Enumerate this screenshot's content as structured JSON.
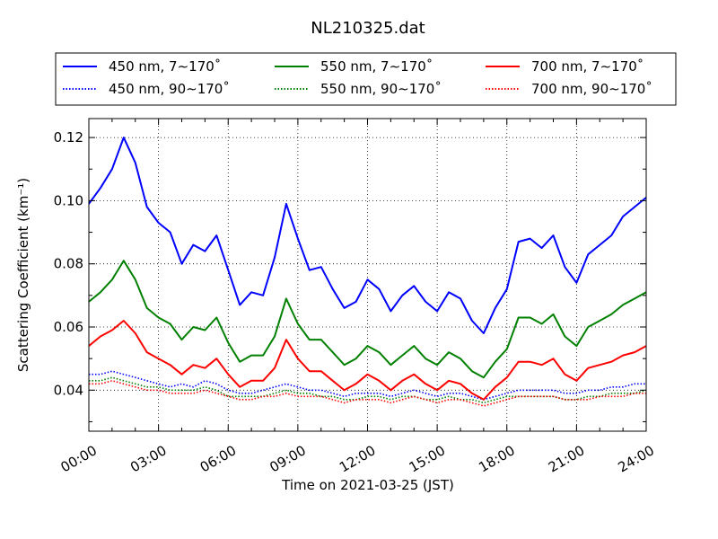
{
  "chart_data": {
    "type": "line",
    "title": "NL210325.dat",
    "xlabel": "Time on 2021-03-25 (JST)",
    "ylabel": "Scattering Coefficient (km⁻¹)",
    "xlim": [
      "00:00",
      "24:00"
    ],
    "ylim": [
      0.027,
      0.126
    ],
    "x_ticks": [
      "00:00",
      "03:00",
      "06:00",
      "09:00",
      "12:00",
      "15:00",
      "18:00",
      "21:00",
      "24:00"
    ],
    "y_ticks": [
      "0.04",
      "0.06",
      "0.08",
      "0.10",
      "0.12"
    ],
    "y_tick_values": [
      0.04,
      0.06,
      0.08,
      0.1,
      0.12
    ],
    "grid": true,
    "legend_position": "top (outside plot)",
    "x": [
      "00:00",
      "00:30",
      "01:00",
      "01:30",
      "02:00",
      "02:30",
      "03:00",
      "03:30",
      "04:00",
      "04:30",
      "05:00",
      "05:30",
      "06:00",
      "06:30",
      "07:00",
      "07:30",
      "08:00",
      "08:30",
      "09:00",
      "09:30",
      "10:00",
      "10:30",
      "11:00",
      "11:30",
      "12:00",
      "12:30",
      "13:00",
      "13:30",
      "14:00",
      "14:30",
      "15:00",
      "15:30",
      "16:00",
      "16:30",
      "17:00",
      "17:30",
      "18:00",
      "18:30",
      "19:00",
      "19:30",
      "20:00",
      "20:30",
      "21:00",
      "21:30",
      "22:00",
      "22:30",
      "23:00",
      "23:30",
      "24:00"
    ],
    "series": [
      {
        "name": "450 nm, 7∼170˚",
        "color": "#0000ff",
        "style": "solid",
        "values": [
          0.099,
          0.104,
          0.11,
          0.12,
          0.112,
          0.098,
          0.093,
          0.09,
          0.08,
          0.086,
          0.084,
          0.089,
          0.078,
          0.067,
          0.071,
          0.07,
          0.082,
          0.099,
          0.088,
          0.078,
          0.079,
          0.072,
          0.066,
          0.068,
          0.075,
          0.072,
          0.065,
          0.07,
          0.073,
          0.068,
          0.065,
          0.071,
          0.069,
          0.062,
          0.058,
          0.066,
          0.072,
          0.087,
          0.088,
          0.085,
          0.089,
          0.079,
          0.074,
          0.083,
          0.086,
          0.089,
          0.095,
          0.098,
          0.101
        ]
      },
      {
        "name": "450 nm, 90∼170˚",
        "color": "#0000ff",
        "style": "dotted",
        "values": [
          0.045,
          0.045,
          0.046,
          0.045,
          0.044,
          0.043,
          0.042,
          0.041,
          0.042,
          0.041,
          0.043,
          0.042,
          0.04,
          0.039,
          0.039,
          0.04,
          0.041,
          0.042,
          0.041,
          0.04,
          0.04,
          0.039,
          0.038,
          0.039,
          0.039,
          0.039,
          0.038,
          0.039,
          0.04,
          0.039,
          0.038,
          0.039,
          0.039,
          0.038,
          0.037,
          0.038,
          0.039,
          0.04,
          0.04,
          0.04,
          0.04,
          0.039,
          0.039,
          0.04,
          0.04,
          0.041,
          0.041,
          0.042,
          0.042
        ]
      },
      {
        "name": "550 nm, 7∼170˚",
        "color": "#008000",
        "style": "solid",
        "values": [
          0.068,
          0.071,
          0.075,
          0.081,
          0.075,
          0.066,
          0.063,
          0.061,
          0.056,
          0.06,
          0.059,
          0.063,
          0.055,
          0.049,
          0.051,
          0.051,
          0.057,
          0.069,
          0.061,
          0.056,
          0.056,
          0.052,
          0.048,
          0.05,
          0.054,
          0.052,
          0.048,
          0.051,
          0.054,
          0.05,
          0.048,
          0.052,
          0.05,
          0.046,
          0.044,
          0.049,
          0.053,
          0.063,
          0.063,
          0.061,
          0.064,
          0.057,
          0.054,
          0.06,
          0.062,
          0.064,
          0.067,
          0.069,
          0.071
        ]
      },
      {
        "name": "550 nm, 90∼170˚",
        "color": "#008000",
        "style": "dotted",
        "values": [
          0.043,
          0.043,
          0.044,
          0.043,
          0.042,
          0.041,
          0.041,
          0.04,
          0.04,
          0.04,
          0.041,
          0.04,
          0.038,
          0.038,
          0.038,
          0.038,
          0.039,
          0.04,
          0.039,
          0.039,
          0.038,
          0.038,
          0.037,
          0.037,
          0.038,
          0.038,
          0.037,
          0.038,
          0.038,
          0.037,
          0.037,
          0.038,
          0.037,
          0.037,
          0.036,
          0.037,
          0.038,
          0.038,
          0.038,
          0.038,
          0.038,
          0.037,
          0.037,
          0.038,
          0.038,
          0.039,
          0.039,
          0.039,
          0.04
        ]
      },
      {
        "name": "700 nm, 7∼170˚",
        "color": "#ff0000",
        "style": "solid",
        "values": [
          0.054,
          0.057,
          0.059,
          0.062,
          0.058,
          0.052,
          0.05,
          0.048,
          0.045,
          0.048,
          0.047,
          0.05,
          0.045,
          0.041,
          0.043,
          0.043,
          0.047,
          0.056,
          0.05,
          0.046,
          0.046,
          0.043,
          0.04,
          0.042,
          0.045,
          0.043,
          0.04,
          0.043,
          0.045,
          0.042,
          0.04,
          0.043,
          0.042,
          0.039,
          0.037,
          0.041,
          0.044,
          0.049,
          0.049,
          0.048,
          0.05,
          0.045,
          0.043,
          0.047,
          0.048,
          0.049,
          0.051,
          0.052,
          0.054
        ]
      },
      {
        "name": "700 nm, 90∼170˚",
        "color": "#ff0000",
        "style": "dotted",
        "values": [
          0.042,
          0.042,
          0.043,
          0.042,
          0.041,
          0.04,
          0.04,
          0.039,
          0.039,
          0.039,
          0.04,
          0.039,
          0.038,
          0.037,
          0.037,
          0.038,
          0.038,
          0.039,
          0.038,
          0.038,
          0.038,
          0.037,
          0.036,
          0.037,
          0.037,
          0.037,
          0.036,
          0.037,
          0.038,
          0.037,
          0.036,
          0.037,
          0.037,
          0.036,
          0.035,
          0.036,
          0.037,
          0.038,
          0.038,
          0.038,
          0.038,
          0.037,
          0.037,
          0.037,
          0.038,
          0.038,
          0.038,
          0.039,
          0.039
        ]
      }
    ]
  }
}
